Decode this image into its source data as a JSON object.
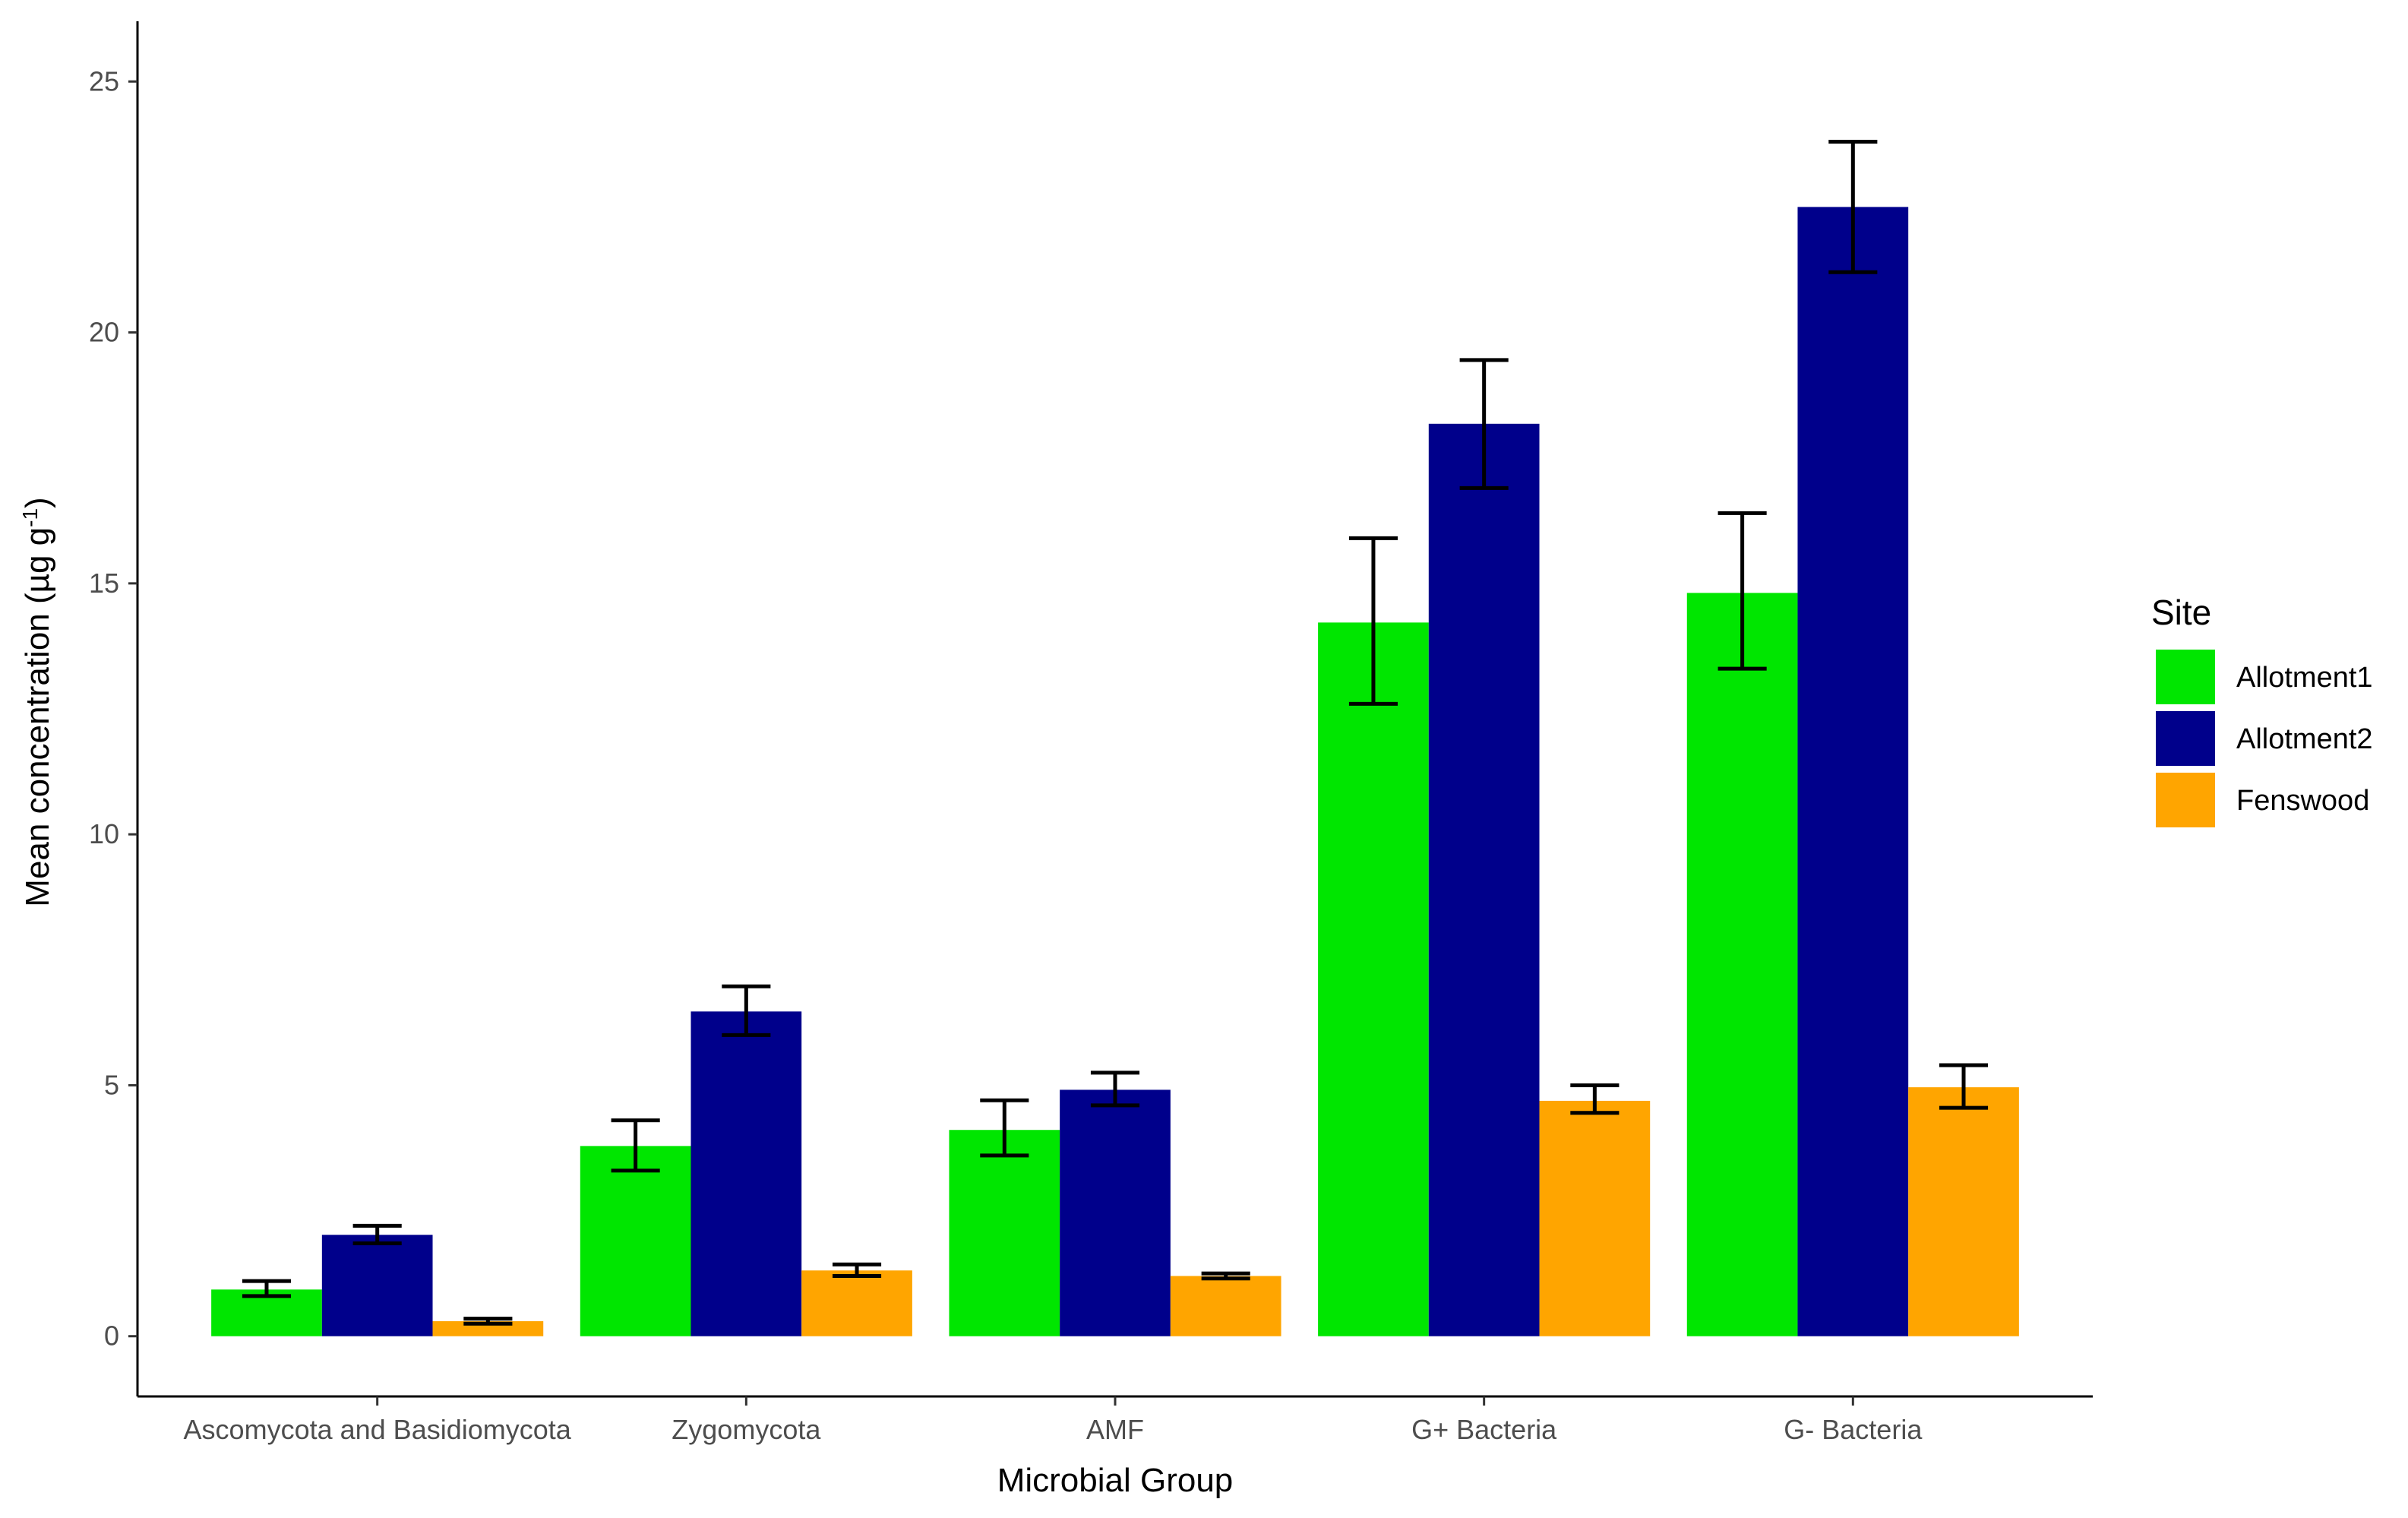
{
  "chart_data": {
    "type": "bar",
    "xlabel": "Microbial Group",
    "ylabel": "Mean concentration (µg g",
    "ylabel_sup": "-1",
    "ylabel_end": ")",
    "ylim": [
      -1.2,
      26.2
    ],
    "yticks": [
      0,
      5,
      10,
      15,
      20,
      25
    ],
    "ytick_labels": [
      "0",
      "5",
      "10",
      "15",
      "20",
      "25"
    ],
    "categories": [
      "Ascomycota and Basidiomycota",
      "Zygomycota",
      "AMF",
      "G+ Bacteria",
      "G- Bacteria"
    ],
    "series": [
      {
        "name": "Allotment1",
        "color": "#00e600",
        "values": [
          0.93,
          3.79,
          4.11,
          14.22,
          14.81
        ],
        "err_low": [
          0.8,
          3.3,
          3.6,
          12.6,
          13.3
        ],
        "err_high": [
          1.1,
          4.3,
          4.7,
          15.9,
          16.4
        ]
      },
      {
        "name": "Allotment2",
        "color": "#00008b",
        "values": [
          2.02,
          6.47,
          4.91,
          18.18,
          22.5
        ],
        "err_low": [
          1.85,
          6.0,
          4.6,
          16.9,
          21.2
        ],
        "err_high": [
          2.2,
          6.97,
          5.25,
          19.45,
          23.8
        ]
      },
      {
        "name": "Fenswood",
        "color": "#ffa500",
        "values": [
          0.3,
          1.31,
          1.2,
          4.69,
          4.96
        ],
        "err_low": [
          0.25,
          1.2,
          1.15,
          4.45,
          4.55
        ],
        "err_high": [
          0.35,
          1.43,
          1.25,
          5.0,
          5.4
        ]
      }
    ],
    "legend": {
      "title": "Site",
      "position": "right"
    },
    "grid": false
  }
}
